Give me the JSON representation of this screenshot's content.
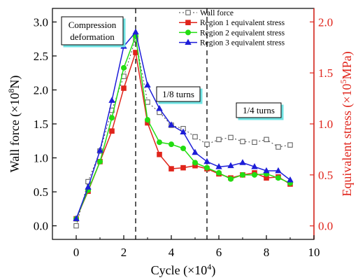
{
  "chart_data": {
    "type": "line",
    "x": [
      0,
      0.5,
      1,
      1.5,
      2,
      2.5,
      3,
      3.5,
      4,
      4.5,
      5,
      5.5,
      6,
      6.5,
      7,
      7.5,
      8,
      8.5,
      9
    ],
    "xlabel_base": "Cycle (×10",
    "xlabel_exp": "4",
    "xlabel_end": ")",
    "xlim": [
      -1,
      10
    ],
    "xticks": [
      "0",
      "2",
      "4",
      "6",
      "8",
      "10"
    ],
    "xtick_values": [
      0,
      2,
      4,
      6,
      8,
      10
    ],
    "ylabel_base": "Wall force (×10",
    "ylabel_exp": "8",
    "ylabel_end": "N)",
    "ylim": [
      -0.2,
      3.2
    ],
    "yticks": [
      "0.0",
      "0.5",
      "1.0",
      "1.5",
      "2.0",
      "2.5",
      "3.0"
    ],
    "ytick_values": [
      0,
      0.5,
      1.0,
      1.5,
      2.0,
      2.5,
      3.0
    ],
    "y2label_base": "Equivalent stress (×10",
    "y2label_exp": "5",
    "y2label_end": "MPa)",
    "y2lim": [
      -0.1325,
      2.1325
    ],
    "y2ticks": [
      "0.0",
      "0.5",
      "1.0",
      "1.5",
      "2.0"
    ],
    "y2tick_values": [
      0,
      0.5,
      1.0,
      1.5,
      2.0
    ],
    "vlines": [
      2.5,
      5.5
    ],
    "series": [
      {
        "name": "Wall force",
        "axis": "left",
        "color": "#444444",
        "marker": "square-open",
        "dash": "2,3",
        "values": [
          0.0,
          0.65,
          1.1,
          1.7,
          2.2,
          2.75,
          1.82,
          1.67,
          1.48,
          1.43,
          1.31,
          1.2,
          1.27,
          1.3,
          1.24,
          1.23,
          1.27,
          1.16,
          1.19
        ]
      },
      {
        "name": "Region 1 equivalent stress",
        "axis": "right",
        "color": "#e0241b",
        "marker": "square",
        "dash": "",
        "values": [
          0.07,
          0.34,
          0.63,
          0.93,
          1.35,
          1.7,
          1.01,
          0.7,
          0.56,
          0.57,
          0.59,
          0.56,
          0.51,
          0.47,
          0.5,
          0.52,
          0.47,
          0.48,
          0.41
        ]
      },
      {
        "name": "Region 2 equivalent stress",
        "axis": "right",
        "color": "#22dd11",
        "marker": "circle",
        "dash": "",
        "values": [
          0.07,
          0.35,
          0.63,
          1.06,
          1.55,
          1.86,
          1.04,
          0.82,
          0.8,
          0.76,
          0.62,
          0.57,
          0.52,
          0.46,
          0.5,
          0.5,
          0.51,
          0.47,
          0.42
        ]
      },
      {
        "name": "Region 3 equivalent stress",
        "axis": "right",
        "color": "#1d1dd8",
        "marker": "triangle",
        "dash": "",
        "values": [
          0.07,
          0.38,
          0.74,
          1.23,
          1.76,
          1.9,
          1.38,
          1.15,
          0.99,
          0.92,
          0.72,
          0.63,
          0.58,
          0.59,
          0.62,
          0.58,
          0.54,
          0.54,
          0.45
        ]
      }
    ],
    "annotations": [
      {
        "id": "compression",
        "lines": [
          "Compression",
          "deformation"
        ]
      },
      {
        "id": "eighth",
        "lines": [
          "1/8 turns"
        ]
      },
      {
        "id": "quarter",
        "lines": [
          "1/4 turns"
        ]
      }
    ]
  }
}
